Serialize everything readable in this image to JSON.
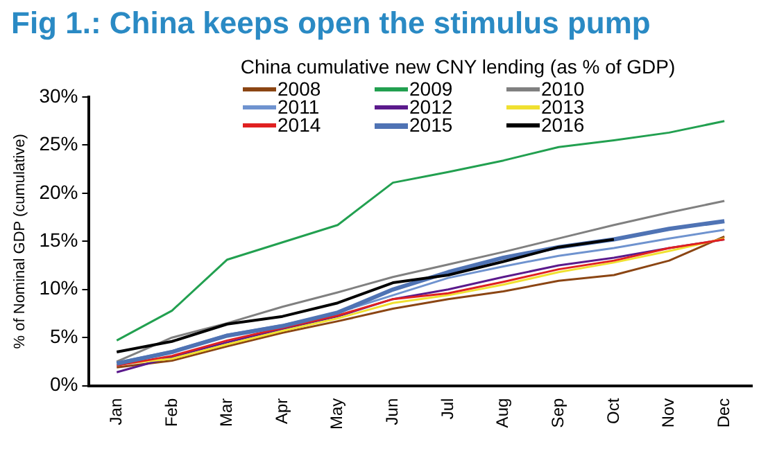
{
  "chart_data": {
    "type": "line",
    "title": "Fig 1.: China keeps open the stimulus pump",
    "subtitle": "China cumulative new CNY lending (as % of GDP)",
    "ylabel": "% of Nominal GDP (cumulative)",
    "categories": [
      "Jan",
      "Feb",
      "Mar",
      "Apr",
      "May",
      "Jun",
      "Jul",
      "Aug",
      "Sep",
      "Oct",
      "Nov",
      "Dec"
    ],
    "ylim": [
      0,
      30
    ],
    "yticks": [
      {
        "value": 0,
        "label": "0%"
      },
      {
        "value": 5,
        "label": "5%"
      },
      {
        "value": 10,
        "label": "10%"
      },
      {
        "value": 15,
        "label": "15%"
      },
      {
        "value": 20,
        "label": "20%"
      },
      {
        "value": 25,
        "label": "25%"
      },
      {
        "value": 30,
        "label": "30%"
      }
    ],
    "grid": false,
    "legend": "top",
    "marker": "none",
    "line_style": "solid",
    "series": [
      {
        "name": "2008",
        "color": "#8b4513",
        "values": [
          1.9,
          2.6,
          4.1,
          5.5,
          6.7,
          8.0,
          9.0,
          9.8,
          10.9,
          11.5,
          13.0,
          15.5
        ]
      },
      {
        "name": "2009",
        "color": "#22a050",
        "values": [
          4.7,
          7.8,
          13.1,
          14.9,
          16.7,
          21.1,
          22.2,
          23.4,
          24.8,
          25.5,
          26.3,
          27.5
        ]
      },
      {
        "name": "2010",
        "color": "#808080",
        "values": [
          2.5,
          5.0,
          6.5,
          8.2,
          9.7,
          11.3,
          12.6,
          13.9,
          15.3,
          16.7,
          18.0,
          19.2
        ]
      },
      {
        "name": "2011",
        "color": "#6f93cf",
        "values": [
          2.4,
          3.6,
          5.3,
          6.3,
          7.6,
          9.4,
          11.2,
          12.4,
          13.5,
          14.3,
          15.3,
          16.2
        ]
      },
      {
        "name": "2012",
        "color": "#5b1a8c",
        "values": [
          1.4,
          3.0,
          4.5,
          5.9,
          7.2,
          9.0,
          10.0,
          11.3,
          12.5,
          13.3,
          14.3,
          15.2
        ]
      },
      {
        "name": "2013",
        "color": "#f0e030",
        "values": [
          2.2,
          2.8,
          4.3,
          5.7,
          7.0,
          8.6,
          9.4,
          10.5,
          11.8,
          12.8,
          14.0,
          15.3
        ]
      },
      {
        "name": "2014",
        "color": "#e02020",
        "values": [
          2.1,
          3.1,
          4.7,
          6.0,
          7.3,
          9.0,
          9.6,
          10.8,
          12.1,
          13.0,
          14.3,
          15.2
        ]
      },
      {
        "name": "2015",
        "color": "#4f73b4",
        "values": [
          2.3,
          3.5,
          5.2,
          6.2,
          7.6,
          10.0,
          11.8,
          13.3,
          14.4,
          15.2,
          16.3,
          17.1
        ]
      },
      {
        "name": "2016",
        "color": "#000000",
        "values": [
          3.5,
          4.6,
          6.4,
          7.2,
          8.6,
          10.7,
          11.5,
          12.9,
          14.4,
          15.2,
          null,
          null
        ]
      }
    ]
  }
}
